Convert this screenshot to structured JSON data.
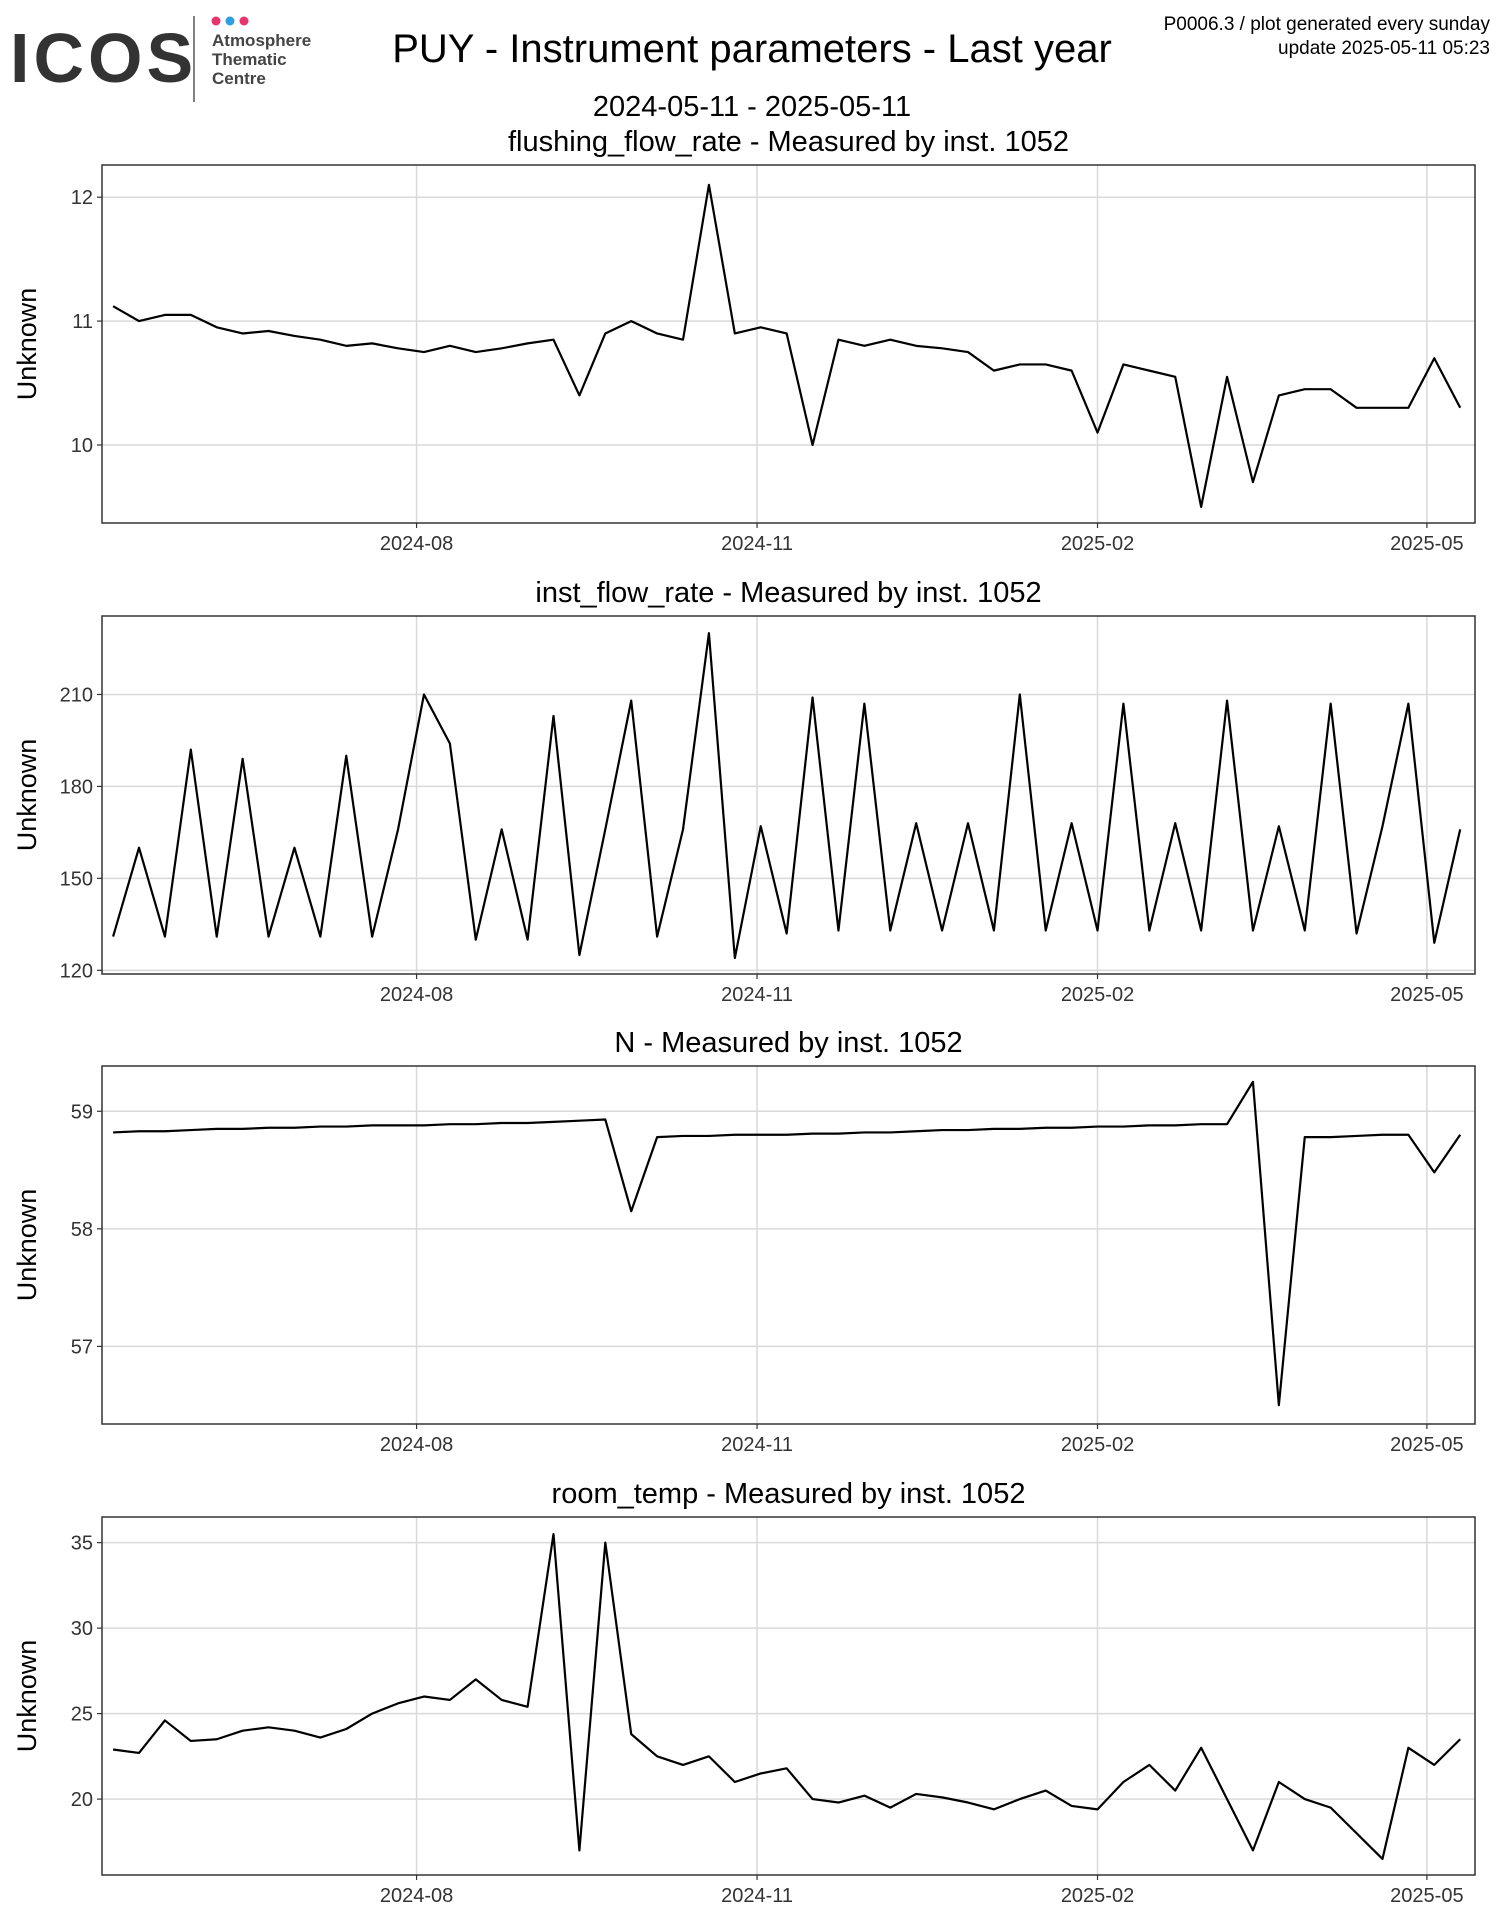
{
  "header": {
    "logo": "ICOS",
    "logo_lines": [
      "Atmosphere",
      "Thematic",
      "Centre"
    ],
    "title": "PUY - Instrument parameters - Last year",
    "subtitle": "2024-05-11 - 2025-05-11",
    "note": "P0006.3 / plot generated every sunday",
    "update": "update  2025-05-11 05:23"
  },
  "chart_data": [
    {
      "type": "line",
      "title": "flushing_flow_rate - Measured by inst. 1052",
      "ylabel": "Unknown",
      "color": "#000000",
      "grid": true,
      "x": [
        "2024-05-11",
        "2024-05-18",
        "2024-05-25",
        "2024-06-01",
        "2024-06-08",
        "2024-06-15",
        "2024-06-22",
        "2024-06-29",
        "2024-07-06",
        "2024-07-13",
        "2024-07-20",
        "2024-07-27",
        "2024-08-03",
        "2024-08-10",
        "2024-08-17",
        "2024-08-24",
        "2024-08-31",
        "2024-09-07",
        "2024-09-14",
        "2024-09-21",
        "2024-09-28",
        "2024-10-05",
        "2024-10-12",
        "2024-10-19",
        "2024-10-26",
        "2024-11-02",
        "2024-11-09",
        "2024-11-16",
        "2024-11-23",
        "2024-11-30",
        "2024-12-07",
        "2024-12-14",
        "2024-12-21",
        "2024-12-28",
        "2025-01-04",
        "2025-01-11",
        "2025-01-18",
        "2025-01-25",
        "2025-02-01",
        "2025-02-08",
        "2025-02-15",
        "2025-02-22",
        "2025-03-01",
        "2025-03-08",
        "2025-03-15",
        "2025-03-22",
        "2025-03-29",
        "2025-04-05",
        "2025-04-12",
        "2025-04-19",
        "2025-04-26",
        "2025-05-03",
        "2025-05-10"
      ],
      "values": [
        11.12,
        11.0,
        11.05,
        11.05,
        10.95,
        10.9,
        10.92,
        10.88,
        10.85,
        10.8,
        10.82,
        10.78,
        10.75,
        10.8,
        10.75,
        10.78,
        10.82,
        10.85,
        10.4,
        10.9,
        11.0,
        10.9,
        10.85,
        12.1,
        10.9,
        10.95,
        10.9,
        10.0,
        10.85,
        10.8,
        10.85,
        10.8,
        10.78,
        10.75,
        10.6,
        10.65,
        10.65,
        10.6,
        10.1,
        10.65,
        10.6,
        10.55,
        9.5,
        10.55,
        9.7,
        10.4,
        10.45,
        10.45,
        10.3,
        10.3,
        10.3,
        10.7,
        10.3
      ],
      "xlim": [
        "2024-05-08",
        "2025-05-14"
      ],
      "xticks": [
        {
          "value": "2024-08-01",
          "label": "2024-08"
        },
        {
          "value": "2024-11-01",
          "label": "2024-11"
        },
        {
          "value": "2025-02-01",
          "label": "2025-02"
        },
        {
          "value": "2025-05-01",
          "label": "2025-05"
        }
      ],
      "ylim": [
        9.37,
        12.26
      ],
      "yticks": [
        10,
        11,
        12
      ]
    },
    {
      "type": "line",
      "title": "inst_flow_rate - Measured by inst. 1052",
      "ylabel": "Unknown",
      "color": "#000000",
      "grid": true,
      "x": [
        "2024-05-11",
        "2024-05-18",
        "2024-05-25",
        "2024-06-01",
        "2024-06-08",
        "2024-06-15",
        "2024-06-22",
        "2024-06-29",
        "2024-07-06",
        "2024-07-13",
        "2024-07-20",
        "2024-07-27",
        "2024-08-03",
        "2024-08-10",
        "2024-08-17",
        "2024-08-24",
        "2024-08-31",
        "2024-09-07",
        "2024-09-14",
        "2024-09-21",
        "2024-09-28",
        "2024-10-05",
        "2024-10-12",
        "2024-10-19",
        "2024-10-26",
        "2024-11-02",
        "2024-11-09",
        "2024-11-16",
        "2024-11-23",
        "2024-11-30",
        "2024-12-07",
        "2024-12-14",
        "2024-12-21",
        "2024-12-28",
        "2025-01-04",
        "2025-01-11",
        "2025-01-18",
        "2025-01-25",
        "2025-02-01",
        "2025-02-08",
        "2025-02-15",
        "2025-02-22",
        "2025-03-01",
        "2025-03-08",
        "2025-03-15",
        "2025-03-22",
        "2025-03-29",
        "2025-04-05",
        "2025-04-12",
        "2025-04-19",
        "2025-04-26",
        "2025-05-03",
        "2025-05-10"
      ],
      "values": [
        131,
        160,
        131,
        192,
        131,
        189,
        131,
        160,
        131,
        190,
        131,
        166,
        210,
        194,
        130,
        166,
        130,
        203,
        125,
        166,
        208,
        131,
        166,
        230,
        124,
        167,
        132,
        209,
        133,
        207,
        133,
        168,
        133,
        168,
        133,
        210,
        133,
        168,
        133,
        207,
        133,
        168,
        133,
        208,
        133,
        167,
        133,
        207,
        132,
        167,
        207,
        129,
        166
      ],
      "xlim": [
        "2024-05-08",
        "2025-05-14"
      ],
      "xticks": [
        {
          "value": "2024-08-01",
          "label": "2024-08"
        },
        {
          "value": "2024-11-01",
          "label": "2024-11"
        },
        {
          "value": "2025-02-01",
          "label": "2025-02"
        },
        {
          "value": "2025-05-01",
          "label": "2025-05"
        }
      ],
      "ylim": [
        118.8,
        235.6
      ],
      "yticks": [
        120,
        150,
        180,
        210
      ]
    },
    {
      "type": "line",
      "title": "N - Measured by inst. 1052",
      "ylabel": "Unknown",
      "color": "#000000",
      "grid": true,
      "x": [
        "2024-05-11",
        "2024-05-18",
        "2024-05-25",
        "2024-06-01",
        "2024-06-08",
        "2024-06-15",
        "2024-06-22",
        "2024-06-29",
        "2024-07-06",
        "2024-07-13",
        "2024-07-20",
        "2024-07-27",
        "2024-08-03",
        "2024-08-10",
        "2024-08-17",
        "2024-08-24",
        "2024-08-31",
        "2024-09-07",
        "2024-09-14",
        "2024-09-21",
        "2024-09-28",
        "2024-10-05",
        "2024-10-12",
        "2024-10-19",
        "2024-10-26",
        "2024-11-02",
        "2024-11-09",
        "2024-11-16",
        "2024-11-23",
        "2024-11-30",
        "2024-12-07",
        "2024-12-14",
        "2024-12-21",
        "2024-12-28",
        "2025-01-04",
        "2025-01-11",
        "2025-01-18",
        "2025-01-25",
        "2025-02-01",
        "2025-02-08",
        "2025-02-15",
        "2025-02-22",
        "2025-03-01",
        "2025-03-08",
        "2025-03-15",
        "2025-03-22",
        "2025-03-29",
        "2025-04-05",
        "2025-04-12",
        "2025-04-19",
        "2025-04-26",
        "2025-05-03",
        "2025-05-10"
      ],
      "values": [
        58.82,
        58.83,
        58.83,
        58.84,
        58.85,
        58.85,
        58.86,
        58.86,
        58.87,
        58.87,
        58.88,
        58.88,
        58.88,
        58.89,
        58.89,
        58.9,
        58.9,
        58.91,
        58.92,
        58.93,
        58.15,
        58.78,
        58.79,
        58.79,
        58.8,
        58.8,
        58.8,
        58.81,
        58.81,
        58.82,
        58.82,
        58.83,
        58.84,
        58.84,
        58.85,
        58.85,
        58.86,
        58.86,
        58.87,
        58.87,
        58.88,
        58.88,
        58.89,
        58.89,
        59.25,
        56.5,
        58.78,
        58.78,
        58.79,
        58.8,
        58.8,
        58.48,
        58.8
      ],
      "xlim": [
        "2024-05-08",
        "2025-05-14"
      ],
      "xticks": [
        {
          "value": "2024-08-01",
          "label": "2024-08"
        },
        {
          "value": "2024-11-01",
          "label": "2024-11"
        },
        {
          "value": "2025-02-01",
          "label": "2025-02"
        },
        {
          "value": "2025-05-01",
          "label": "2025-05"
        }
      ],
      "ylim": [
        56.34,
        59.385
      ],
      "yticks": [
        57,
        58,
        59
      ]
    },
    {
      "type": "line",
      "title": "room_temp - Measured by inst. 1052",
      "ylabel": "Unknown",
      "color": "#000000",
      "grid": true,
      "x": [
        "2024-05-11",
        "2024-05-18",
        "2024-05-25",
        "2024-06-01",
        "2024-06-08",
        "2024-06-15",
        "2024-06-22",
        "2024-06-29",
        "2024-07-06",
        "2024-07-13",
        "2024-07-20",
        "2024-07-27",
        "2024-08-03",
        "2024-08-10",
        "2024-08-17",
        "2024-08-24",
        "2024-08-31",
        "2024-09-07",
        "2024-09-14",
        "2024-09-21",
        "2024-09-28",
        "2024-10-05",
        "2024-10-12",
        "2024-10-19",
        "2024-10-26",
        "2024-11-02",
        "2024-11-09",
        "2024-11-16",
        "2024-11-23",
        "2024-11-30",
        "2024-12-07",
        "2024-12-14",
        "2024-12-21",
        "2024-12-28",
        "2025-01-04",
        "2025-01-11",
        "2025-01-18",
        "2025-01-25",
        "2025-02-01",
        "2025-02-08",
        "2025-02-15",
        "2025-02-22",
        "2025-03-01",
        "2025-03-08",
        "2025-03-15",
        "2025-03-22",
        "2025-03-29",
        "2025-04-05",
        "2025-04-12",
        "2025-04-19",
        "2025-04-26",
        "2025-05-03",
        "2025-05-10"
      ],
      "values": [
        22.9,
        22.7,
        24.6,
        23.4,
        23.5,
        24.0,
        24.2,
        24.0,
        23.6,
        24.1,
        25.0,
        25.6,
        26.0,
        25.8,
        27.0,
        25.8,
        25.4,
        35.5,
        17.0,
        35.0,
        23.8,
        22.5,
        22.0,
        22.5,
        21.0,
        21.5,
        21.8,
        20.0,
        19.8,
        20.2,
        19.5,
        20.3,
        20.1,
        19.8,
        19.4,
        20.0,
        20.5,
        19.6,
        19.4,
        21.0,
        22.0,
        20.5,
        23.0,
        20.0,
        17.0,
        21.0,
        20.0,
        19.5,
        18.0,
        16.5,
        23.0,
        22.0,
        23.5
      ],
      "xlim": [
        "2024-05-08",
        "2025-05-14"
      ],
      "xticks": [
        {
          "value": "2024-08-01",
          "label": "2024-08"
        },
        {
          "value": "2024-11-01",
          "label": "2024-11"
        },
        {
          "value": "2025-02-01",
          "label": "2025-02"
        },
        {
          "value": "2025-05-01",
          "label": "2025-05"
        }
      ],
      "ylim": [
        15.56,
        36.5
      ],
      "yticks": [
        20,
        25,
        30,
        35
      ]
    }
  ]
}
